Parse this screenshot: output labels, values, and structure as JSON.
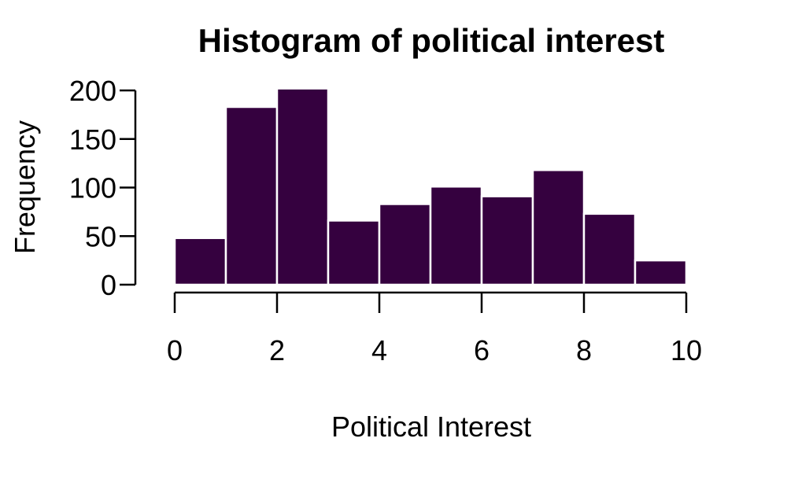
{
  "chart_data": {
    "type": "bar",
    "title": "Histogram of political interest",
    "xlabel": "Political Interest",
    "ylabel": "Frequency",
    "bin_edges": [
      0,
      1,
      2,
      3,
      4,
      5,
      6,
      7,
      8,
      9,
      10
    ],
    "values": [
      48,
      183,
      202,
      66,
      83,
      101,
      91,
      118,
      73,
      25
    ],
    "xlim": [
      0,
      10
    ],
    "ylim": [
      0,
      200
    ],
    "x_ticks": [
      0,
      2,
      4,
      6,
      8,
      10
    ],
    "y_ticks": [
      0,
      50,
      100,
      150,
      200
    ],
    "bar_color": "#35013f",
    "bar_border_color": "#ffffff",
    "grid": false,
    "legend": "none"
  }
}
